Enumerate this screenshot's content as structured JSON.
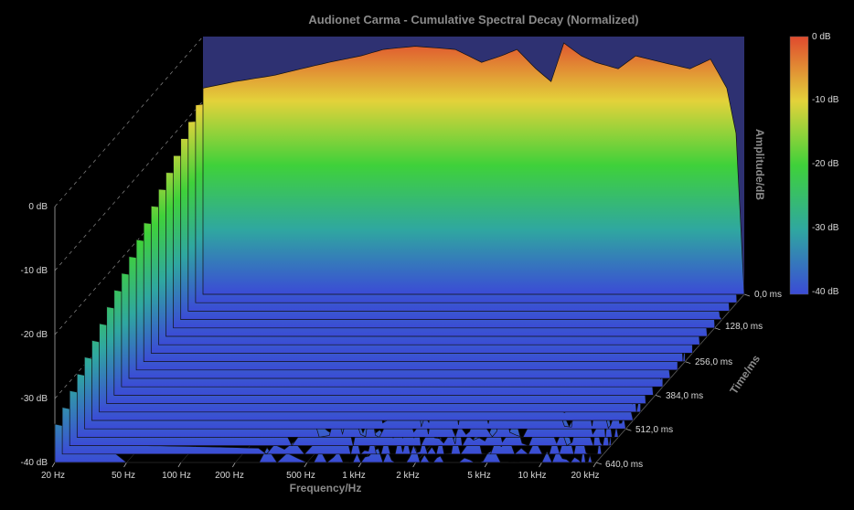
{
  "chart_data": {
    "type": "waterfall-3d",
    "title": "Audionet Carma - Cumulative Spectral Decay (Normalized)",
    "xlabel": "Frequency/Hz",
    "ylabel": "Amplitude/dB",
    "zlabel": "Time/ms",
    "x_ticks": [
      "20 Hz",
      "50 Hz",
      "100 Hz",
      "200 Hz",
      "500 Hz",
      "1 kHz",
      "2 kHz",
      "5 kHz",
      "10 kHz",
      "20 kHz"
    ],
    "x_tick_values": [
      20,
      50,
      100,
      200,
      500,
      1000,
      2000,
      5000,
      10000,
      20000
    ],
    "xlim": [
      20,
      20000
    ],
    "x_scale": "log",
    "y_ticks": [
      "0 dB",
      "-10 dB",
      "-20 dB",
      "-30 dB",
      "-40 dB"
    ],
    "y_tick_values": [
      0,
      -10,
      -20,
      -30,
      -40
    ],
    "ylim": [
      -40,
      0
    ],
    "z_ticks": [
      "0,0 ms",
      "128,0 ms",
      "256,0 ms",
      "384,0 ms",
      "512,0 ms",
      "640,0 ms"
    ],
    "z_tick_values": [
      0,
      128,
      256,
      384,
      512,
      640
    ],
    "zlim": [
      0,
      640
    ],
    "colorbar": {
      "labels": [
        "0 dB",
        "-10 dB",
        "-20 dB",
        "-30 dB",
        "-40 dB"
      ],
      "values": [
        0,
        -10,
        -20,
        -30,
        -40
      ],
      "colors": [
        "#e04a2e",
        "#e3d23a",
        "#3fd13a",
        "#2fa7a0",
        "#3b4bd6"
      ]
    },
    "slice_times_ms": [
      0,
      32,
      64,
      96,
      128,
      160,
      192,
      224,
      256,
      288,
      320,
      352,
      384,
      416,
      448,
      480,
      512,
      544,
      576,
      608,
      640
    ],
    "profile_freqs_hz": [
      20,
      30,
      50,
      70,
      100,
      150,
      200,
      300,
      500,
      700,
      900,
      1100,
      1400,
      1700,
      2000,
      2500,
      3000,
      4000,
      5000,
      7000,
      10000,
      13000,
      16000,
      18000,
      20000
    ],
    "base_profile_db": [
      -8,
      -7,
      -6,
      -5,
      -4,
      -3,
      -2,
      -1.5,
      -2,
      -4,
      -3,
      -2,
      -5,
      -7,
      -1,
      -3,
      -4,
      -5,
      -3,
      -4,
      -5,
      -3.5,
      -8,
      -15,
      -40
    ],
    "start_db": [
      -8,
      -7,
      -8,
      -6,
      -5,
      -4,
      -4,
      -3,
      -3,
      -6,
      -4,
      -2,
      -6,
      -8,
      -1,
      -3,
      -5,
      -6,
      -4,
      -5,
      -6,
      -5,
      -10,
      -18,
      -40
    ],
    "end_db": [
      -34,
      -35,
      -40,
      -40,
      -40,
      -40,
      -40,
      -40,
      -40,
      -40,
      -40,
      -40,
      -40,
      -40,
      -40,
      -40,
      -40,
      -40,
      -40,
      -40,
      -40,
      -40,
      -40,
      -40,
      -40
    ],
    "decay_shape": "near-linear for low frequencies, faster exponential decay above 200 Hz",
    "grid": true
  }
}
